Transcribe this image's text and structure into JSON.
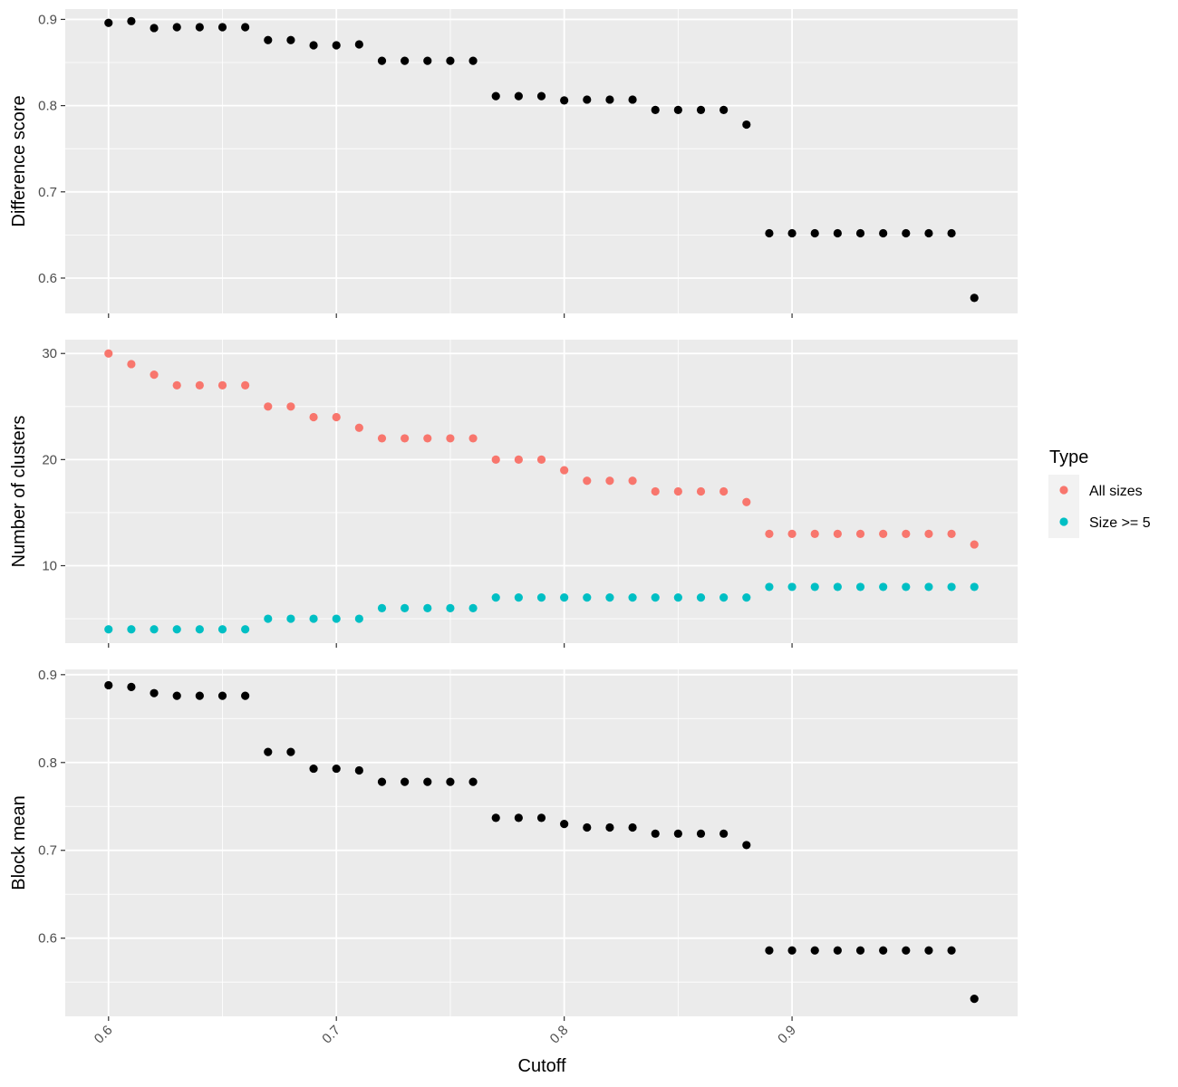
{
  "chart_data": {
    "type": "scatter",
    "xlabel": "Cutoff",
    "xlim": [
      0.581,
      0.999
    ],
    "x_ticks": [
      0.6,
      0.7,
      0.8,
      0.9
    ],
    "x_tick_labels": [
      "0.6",
      "0.7",
      "0.8",
      "0.9"
    ],
    "x": [
      0.6,
      0.61,
      0.62,
      0.63,
      0.64,
      0.65,
      0.66,
      0.67,
      0.68,
      0.69,
      0.7,
      0.71,
      0.72,
      0.73,
      0.74,
      0.75,
      0.76,
      0.77,
      0.78,
      0.79,
      0.8,
      0.81,
      0.82,
      0.83,
      0.84,
      0.85,
      0.86,
      0.87,
      0.88,
      0.89,
      0.9,
      0.91,
      0.92,
      0.93,
      0.94,
      0.95,
      0.96,
      0.97,
      0.98
    ],
    "grid": true,
    "legend": {
      "title": "Type",
      "position": "right",
      "entries": [
        {
          "label": "All sizes",
          "color": "#F8766D"
        },
        {
          "label": "Size >= 5",
          "color": "#00BFC4"
        }
      ]
    },
    "panels": [
      {
        "ylabel": "Difference score",
        "ylim": [
          0.559,
          0.912
        ],
        "y_ticks": [
          0.6,
          0.7,
          0.8,
          0.9
        ],
        "y_tick_labels": [
          "0.6",
          "0.7",
          "0.8",
          "0.9"
        ],
        "series": [
          {
            "color": "#000000",
            "values": [
              0.896,
              0.898,
              0.89,
              0.891,
              0.891,
              0.891,
              0.891,
              0.876,
              0.876,
              0.87,
              0.87,
              0.871,
              0.852,
              0.852,
              0.852,
              0.852,
              0.852,
              0.811,
              0.811,
              0.811,
              0.806,
              0.807,
              0.807,
              0.807,
              0.795,
              0.795,
              0.795,
              0.795,
              0.778,
              0.652,
              0.652,
              0.652,
              0.652,
              0.652,
              0.652,
              0.652,
              0.652,
              0.652,
              0.577
            ]
          }
        ]
      },
      {
        "ylabel": "Number of clusters",
        "ylim": [
          2.7,
          31.3
        ],
        "y_ticks": [
          10,
          20,
          30
        ],
        "y_tick_labels": [
          "10",
          "20",
          "30"
        ],
        "series": [
          {
            "name": "All sizes",
            "color": "#F8766D",
            "values": [
              30,
              29,
              28,
              27,
              27,
              27,
              27,
              25,
              25,
              24,
              24,
              23,
              22,
              22,
              22,
              22,
              22,
              20,
              20,
              20,
              19,
              18,
              18,
              18,
              17,
              17,
              17,
              17,
              16,
              13,
              13,
              13,
              13,
              13,
              13,
              13,
              13,
              13,
              12
            ]
          },
          {
            "name": "Size >= 5",
            "color": "#00BFC4",
            "values": [
              4,
              4,
              4,
              4,
              4,
              4,
              4,
              5,
              5,
              5,
              5,
              5,
              6,
              6,
              6,
              6,
              6,
              7,
              7,
              7,
              7,
              7,
              7,
              7,
              7,
              7,
              7,
              7,
              7,
              8,
              8,
              8,
              8,
              8,
              8,
              8,
              8,
              8,
              8
            ]
          }
        ]
      },
      {
        "ylabel": "Block mean",
        "ylim": [
          0.511,
          0.906
        ],
        "y_ticks": [
          0.6,
          0.7,
          0.8,
          0.9
        ],
        "y_tick_labels": [
          "0.6",
          "0.7",
          "0.8",
          "0.9"
        ],
        "series": [
          {
            "color": "#000000",
            "values": [
              0.888,
              0.886,
              0.879,
              0.876,
              0.876,
              0.876,
              0.876,
              0.812,
              0.812,
              0.793,
              0.793,
              0.791,
              0.778,
              0.778,
              0.778,
              0.778,
              0.778,
              0.737,
              0.737,
              0.737,
              0.73,
              0.726,
              0.726,
              0.726,
              0.719,
              0.719,
              0.719,
              0.719,
              0.706,
              0.586,
              0.586,
              0.586,
              0.586,
              0.586,
              0.586,
              0.586,
              0.586,
              0.586,
              0.531
            ]
          }
        ]
      }
    ]
  }
}
